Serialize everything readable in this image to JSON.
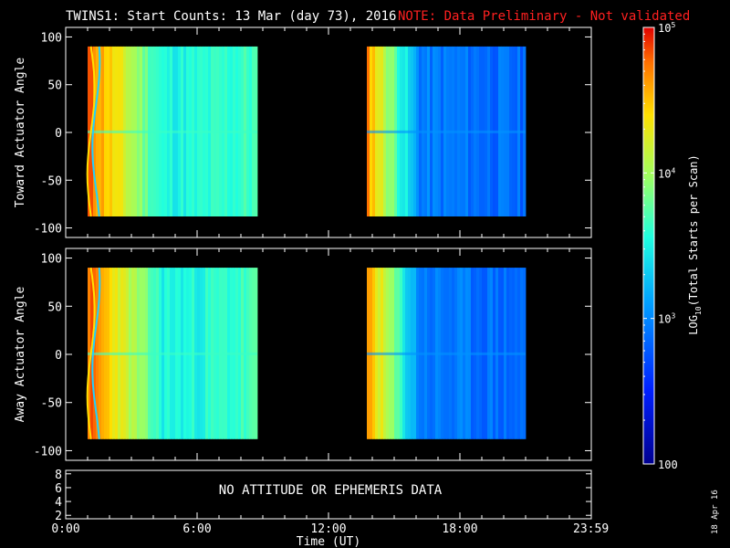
{
  "header": {
    "title": "TWINS1: Start Counts: 13 Mar (day  73), 2016",
    "note": "NOTE: Data Preliminary - Not validated",
    "title_color": "#ffffff",
    "note_color": "#ff2020"
  },
  "side_stamp": "18 Apr 16",
  "no_data_message": "NO ATTITUDE OR EPHEMERIS DATA",
  "chart_data": [
    {
      "type": "heatmap",
      "title": "",
      "ylabel": "Toward Actuator Angle",
      "xlabel": "",
      "x_range_hours": [
        0,
        24
      ],
      "ylim": [
        -110,
        110
      ],
      "yticks": [
        100,
        50,
        0,
        -50,
        -100
      ],
      "ytick_labels": [
        "100",
        "50",
        "0",
        "-50",
        "-100"
      ],
      "data_extent_y": [
        -88,
        90
      ],
      "data_blocks": [
        {
          "start_hour": 1.0,
          "end_hour": 8.75
        },
        {
          "start_hour": 13.75,
          "end_hour": 21.0
        }
      ]
    },
    {
      "type": "heatmap",
      "title": "",
      "ylabel": "Away Actuator Angle",
      "xlabel": "",
      "x_range_hours": [
        0,
        24
      ],
      "ylim": [
        -110,
        110
      ],
      "yticks": [
        100,
        50,
        0,
        -50,
        -100
      ],
      "ytick_labels": [
        "100",
        "50",
        "0",
        "-50",
        "-100"
      ],
      "data_extent_y": [
        -88,
        90
      ],
      "data_blocks": [
        {
          "start_hour": 1.0,
          "end_hour": 8.75
        },
        {
          "start_hour": 13.75,
          "end_hour": 21.0
        }
      ]
    },
    {
      "type": "line",
      "ylim": [
        1.5,
        8.5
      ],
      "yticks": [
        8,
        6,
        4,
        2
      ],
      "ytick_labels": [
        "8",
        "6",
        "4",
        "2"
      ],
      "xticks_hours": [
        0,
        6,
        12,
        18,
        23.983
      ],
      "xtick_labels": [
        "0:00",
        "6:00",
        "12:00",
        "18:00",
        "23:59"
      ],
      "xlabel": "Time (UT)",
      "series": []
    }
  ],
  "colorbar": {
    "label_prefix": "LOG",
    "label_sub": "10",
    "label_suffix": "(Total Starts per Scan)",
    "log_range": [
      2,
      5
    ],
    "ticks": [
      {
        "value": 100,
        "base": "100",
        "exp": ""
      },
      {
        "value": 1000,
        "base": "10",
        "exp": "3"
      },
      {
        "value": 10000,
        "base": "10",
        "exp": "4"
      },
      {
        "value": 100000,
        "base": "10",
        "exp": "5"
      }
    ]
  }
}
